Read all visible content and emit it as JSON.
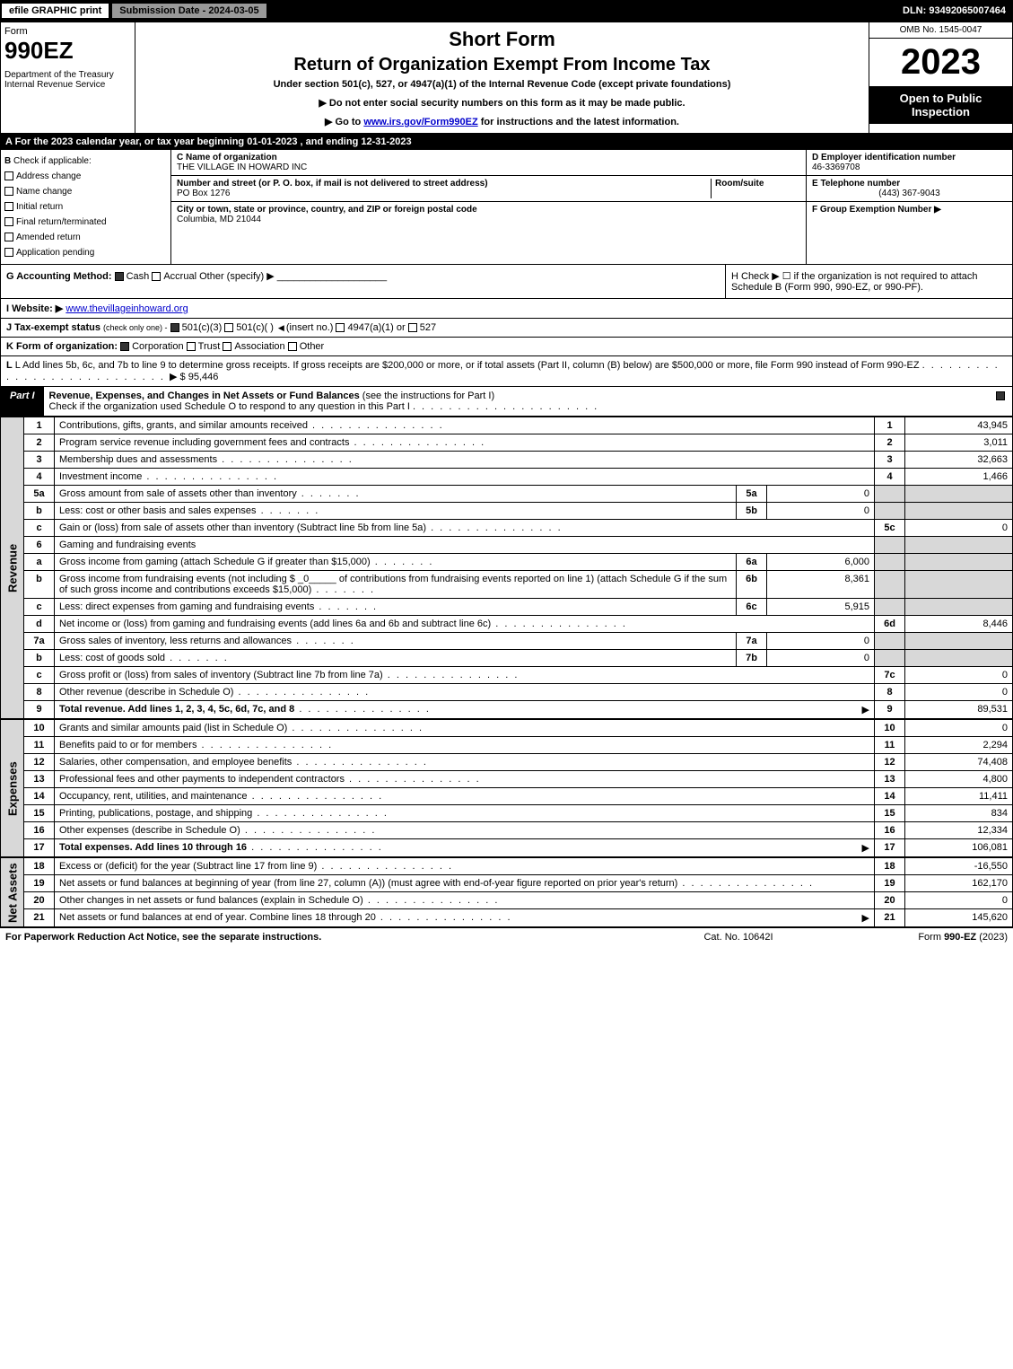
{
  "topbar": {
    "efile": "efile GRAPHIC print",
    "subdate": "Submission Date - 2024-03-05",
    "dln": "DLN: 93492065007464"
  },
  "header": {
    "form": "Form",
    "formnum": "990EZ",
    "dept": "Department of the Treasury\nInternal Revenue Service",
    "shortform": "Short Form",
    "title": "Return of Organization Exempt From Income Tax",
    "subtitle": "Under section 501(c), 527, or 4947(a)(1) of the Internal Revenue Code (except private foundations)",
    "note1": "▶ Do not enter social security numbers on this form as it may be made public.",
    "note2_pre": "▶ Go to ",
    "note2_link": "www.irs.gov/Form990EZ",
    "note2_post": " for instructions and the latest information.",
    "omb": "OMB No. 1545-0047",
    "year": "2023",
    "inspect": "Open to Public Inspection"
  },
  "rowA": "A  For the 2023 calendar year, or tax year beginning 01-01-2023 , and ending 12-31-2023",
  "sectionB": {
    "b_label": "B",
    "check_if": "Check if applicable:",
    "opts": [
      "Address change",
      "Name change",
      "Initial return",
      "Final return/terminated",
      "Amended return",
      "Application pending"
    ],
    "c_label": "C",
    "c_name_hdr": "Name of organization",
    "c_name": "THE VILLAGE IN HOWARD INC",
    "c_addr_hdr": "Number and street (or P. O. box, if mail is not delivered to street address)",
    "c_room": "Room/suite",
    "c_addr": "PO Box 1276",
    "c_city_hdr": "City or town, state or province, country, and ZIP or foreign postal code",
    "c_city": "Columbia, MD  21044",
    "d_hdr": "D Employer identification number",
    "d_val": "46-3369708",
    "e_hdr": "E Telephone number",
    "e_val": "(443) 367-9043",
    "f_hdr": "F Group Exemption Number  ▶",
    "f_val": ""
  },
  "rowG": {
    "g_label": "G Accounting Method:",
    "g_cash": "Cash",
    "g_accrual": "Accrual",
    "g_other": "Other (specify) ▶",
    "h_text": "H  Check ▶  ☐  if the organization is not required to attach Schedule B (Form 990, 990-EZ, or 990-PF).",
    "i_label": "I Website: ▶",
    "i_val": "www.thevillageinhoward.org",
    "j_label": "J Tax-exempt status",
    "j_sub": "(check only one) -",
    "j_501c3": "501(c)(3)",
    "j_501c": "501(c)( )",
    "j_insert": "(insert no.)",
    "j_4947": "4947(a)(1) or",
    "j_527": "527"
  },
  "rowK": {
    "label": "K Form of organization:",
    "corp": "Corporation",
    "trust": "Trust",
    "assoc": "Association",
    "other": "Other"
  },
  "rowL": {
    "text": "L Add lines 5b, 6c, and 7b to line 9 to determine gross receipts. If gross receipts are $200,000 or more, or if total assets (Part II, column (B) below) are $500,000 or more, file Form 990 instead of Form 990-EZ",
    "amt": "▶ $ 95,446"
  },
  "partI": {
    "tab": "Part I",
    "title": "Revenue, Expenses, and Changes in Net Assets or Fund Balances",
    "sub": "(see the instructions for Part I)",
    "check": "Check if the organization used Schedule O to respond to any question in this Part I"
  },
  "sections": {
    "revenue": "Revenue",
    "expenses": "Expenses",
    "netassets": "Net Assets"
  },
  "lines": [
    {
      "n": "1",
      "d": "Contributions, gifts, grants, and similar amounts received",
      "ln": "1",
      "a": "43,945"
    },
    {
      "n": "2",
      "d": "Program service revenue including government fees and contracts",
      "ln": "2",
      "a": "3,011"
    },
    {
      "n": "3",
      "d": "Membership dues and assessments",
      "ln": "3",
      "a": "32,663"
    },
    {
      "n": "4",
      "d": "Investment income",
      "ln": "4",
      "a": "1,466"
    },
    {
      "n": "5a",
      "d": "Gross amount from sale of assets other than inventory",
      "sub": "5a",
      "suba": "0"
    },
    {
      "n": "b",
      "d": "Less: cost or other basis and sales expenses",
      "sub": "5b",
      "suba": "0"
    },
    {
      "n": "c",
      "d": "Gain or (loss) from sale of assets other than inventory (Subtract line 5b from line 5a)",
      "ln": "5c",
      "a": "0"
    },
    {
      "n": "6",
      "d": "Gaming and fundraising events"
    },
    {
      "n": "a",
      "d": "Gross income from gaming (attach Schedule G if greater than $15,000)",
      "sub": "6a",
      "suba": "6,000"
    },
    {
      "n": "b",
      "d": "Gross income from fundraising events (not including $ _0_____ of contributions from fundraising events reported on line 1) (attach Schedule G if the sum of such gross income and contributions exceeds $15,000)",
      "sub": "6b",
      "suba": "8,361"
    },
    {
      "n": "c",
      "d": "Less: direct expenses from gaming and fundraising events",
      "sub": "6c",
      "suba": "5,915"
    },
    {
      "n": "d",
      "d": "Net income or (loss) from gaming and fundraising events (add lines 6a and 6b and subtract line 6c)",
      "ln": "6d",
      "a": "8,446"
    },
    {
      "n": "7a",
      "d": "Gross sales of inventory, less returns and allowances",
      "sub": "7a",
      "suba": "0"
    },
    {
      "n": "b",
      "d": "Less: cost of goods sold",
      "sub": "7b",
      "suba": "0"
    },
    {
      "n": "c",
      "d": "Gross profit or (loss) from sales of inventory (Subtract line 7b from line 7a)",
      "ln": "7c",
      "a": "0"
    },
    {
      "n": "8",
      "d": "Other revenue (describe in Schedule O)",
      "ln": "8",
      "a": "0"
    },
    {
      "n": "9",
      "d": "Total revenue. Add lines 1, 2, 3, 4, 5c, 6d, 7c, and 8",
      "ln": "9",
      "a": "89,531",
      "bold": true,
      "arrow": true
    }
  ],
  "expenses": [
    {
      "n": "10",
      "d": "Grants and similar amounts paid (list in Schedule O)",
      "ln": "10",
      "a": "0"
    },
    {
      "n": "11",
      "d": "Benefits paid to or for members",
      "ln": "11",
      "a": "2,294"
    },
    {
      "n": "12",
      "d": "Salaries, other compensation, and employee benefits",
      "ln": "12",
      "a": "74,408"
    },
    {
      "n": "13",
      "d": "Professional fees and other payments to independent contractors",
      "ln": "13",
      "a": "4,800"
    },
    {
      "n": "14",
      "d": "Occupancy, rent, utilities, and maintenance",
      "ln": "14",
      "a": "11,411"
    },
    {
      "n": "15",
      "d": "Printing, publications, postage, and shipping",
      "ln": "15",
      "a": "834"
    },
    {
      "n": "16",
      "d": "Other expenses (describe in Schedule O)",
      "ln": "16",
      "a": "12,334"
    },
    {
      "n": "17",
      "d": "Total expenses. Add lines 10 through 16",
      "ln": "17",
      "a": "106,081",
      "bold": true,
      "arrow": true
    }
  ],
  "netassets": [
    {
      "n": "18",
      "d": "Excess or (deficit) for the year (Subtract line 17 from line 9)",
      "ln": "18",
      "a": "-16,550"
    },
    {
      "n": "19",
      "d": "Net assets or fund balances at beginning of year (from line 27, column (A)) (must agree with end-of-year figure reported on prior year's return)",
      "ln": "19",
      "a": "162,170"
    },
    {
      "n": "20",
      "d": "Other changes in net assets or fund balances (explain in Schedule O)",
      "ln": "20",
      "a": "0"
    },
    {
      "n": "21",
      "d": "Net assets or fund balances at end of year. Combine lines 18 through 20",
      "ln": "21",
      "a": "145,620",
      "arrow": true
    }
  ],
  "footer": {
    "l": "For Paperwork Reduction Act Notice, see the separate instructions.",
    "c": "Cat. No. 10642I",
    "r": "Form 990-EZ (2023)"
  }
}
